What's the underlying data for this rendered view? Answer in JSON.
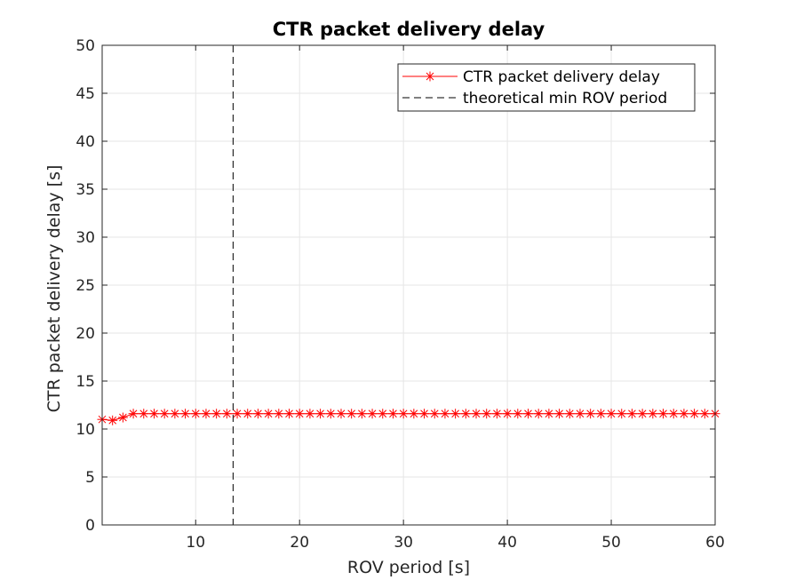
{
  "chart_data": {
    "type": "line",
    "title": "CTR packet delivery delay",
    "xlabel": "ROV period [s]",
    "ylabel": "CTR packet delivery delay [s]",
    "xlim": [
      1,
      60
    ],
    "ylim": [
      0,
      50
    ],
    "x_ticks": [
      10,
      20,
      30,
      40,
      50,
      60
    ],
    "y_ticks": [
      0,
      5,
      10,
      15,
      20,
      25,
      30,
      35,
      40,
      45,
      50
    ],
    "grid": true,
    "legend_position": "top-right",
    "series": [
      {
        "name": "CTR packet delivery delay",
        "color": "#ff0000",
        "marker": "asterisk",
        "line_style": "solid",
        "x": [
          1,
          2,
          3,
          4,
          5,
          6,
          7,
          8,
          9,
          10,
          11,
          12,
          13,
          14,
          15,
          16,
          17,
          18,
          19,
          20,
          21,
          22,
          23,
          24,
          25,
          26,
          27,
          28,
          29,
          30,
          31,
          32,
          33,
          34,
          35,
          36,
          37,
          38,
          39,
          40,
          41,
          42,
          43,
          44,
          45,
          46,
          47,
          48,
          49,
          50,
          51,
          52,
          53,
          54,
          55,
          56,
          57,
          58,
          59,
          60
        ],
        "y": [
          11.0,
          10.9,
          11.2,
          11.6,
          11.6,
          11.6,
          11.6,
          11.6,
          11.6,
          11.6,
          11.6,
          11.6,
          11.6,
          11.6,
          11.6,
          11.6,
          11.6,
          11.6,
          11.6,
          11.6,
          11.6,
          11.6,
          11.6,
          11.6,
          11.6,
          11.6,
          11.6,
          11.6,
          11.6,
          11.6,
          11.6,
          11.6,
          11.6,
          11.6,
          11.6,
          11.6,
          11.6,
          11.6,
          11.6,
          11.6,
          11.6,
          11.6,
          11.6,
          11.6,
          11.6,
          11.6,
          11.6,
          11.6,
          11.6,
          11.6,
          11.6,
          11.6,
          11.6,
          11.6,
          11.6,
          11.6,
          11.6,
          11.6,
          11.6,
          11.6
        ]
      },
      {
        "name": "theoretical min ROV period",
        "color": "#000000",
        "line_style": "dashed",
        "vertical_line_x": 13.6
      }
    ]
  }
}
